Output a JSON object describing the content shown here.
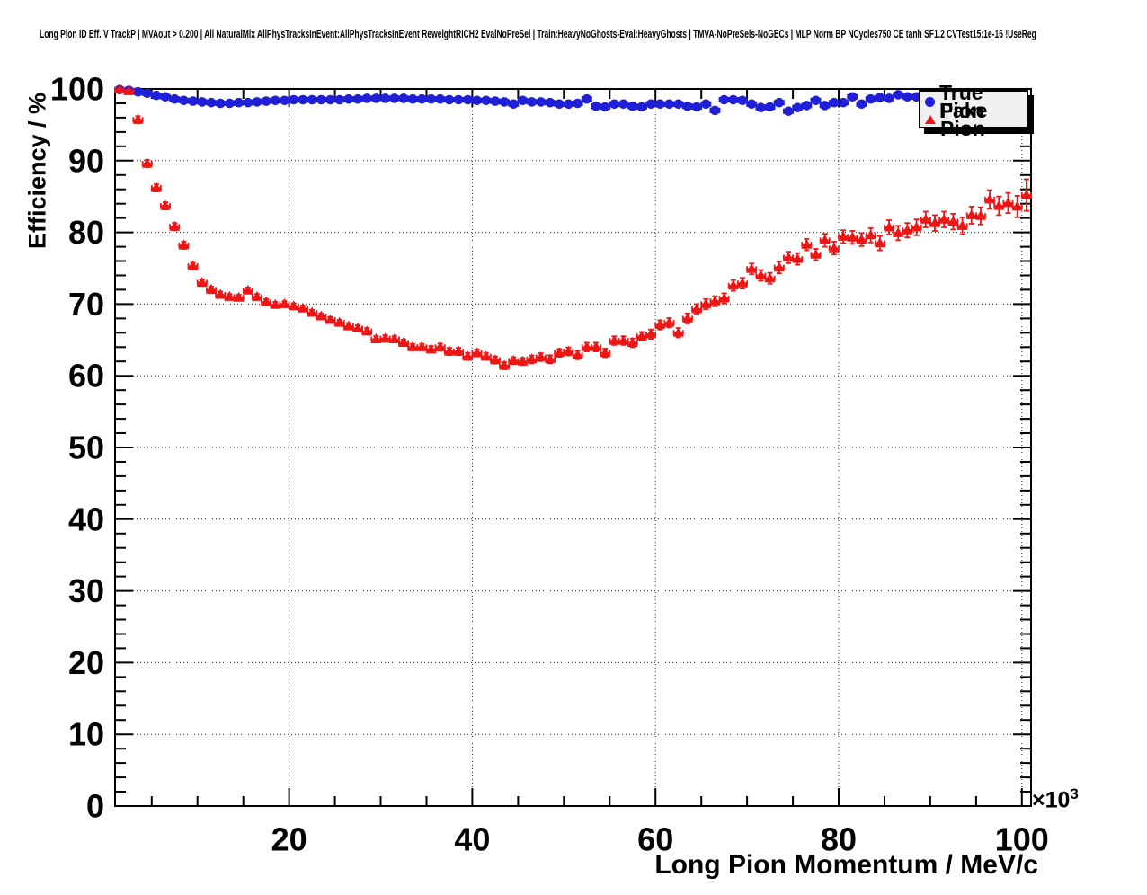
{
  "title": "Long Pion ID Eff. V TrackP | MVAout > 0.200 | All NaturalMix AllPhysTracksInEvent:AllPhysTracksInEvent ReweightRICH2 EvalNoPreSel | Train:HeavyNoGhosts-Eval:HeavyGhosts | TMVA-NoPreSels-NoGECs | MLP Norm BP NCycles750 CE tanh SF1.2 CVTest15:1e-16 !UseReg",
  "legend": {
    "items": [
      {
        "label": "True Pion",
        "marker": "circle",
        "color": "#1f1fd8"
      },
      {
        "label": "Fake Pion",
        "marker": "triangle-up",
        "color": "#ee1515"
      }
    ]
  },
  "chart_data": {
    "type": "scatter",
    "title": "Long Pion ID Eff. V TrackP | MVAout > 0.200 | All NaturalMix AllPhysTracksInEvent:AllPhysTracksInEvent ReweightRICH2 EvalNoPreSel | Train:HeavyNoGhosts-Eval:HeavyGhosts | TMVA-NoPreSels-NoGECs | MLP Norm BP NCycles750 CE tanh SF1.2 CVTest15:1e-16 !UseReg",
    "xlabel": "Long Pion Momentum / MeV/c",
    "ylabel": "Efficiency / %",
    "x_exponent": {
      "mult": "×10",
      "exp": "3"
    },
    "x_unit_scale": "values in units of 1000 MeV/c",
    "xlim": [
      1,
      101
    ],
    "ylim": [
      0,
      100
    ],
    "grid": "dotted",
    "legend_position": "top-right",
    "x_major_ticks": [
      20,
      40,
      60,
      80,
      100
    ],
    "x_tick_labels": [
      "20",
      "40",
      "60",
      "80",
      "100"
    ],
    "x_minor_step": 5,
    "y_major_ticks": [
      0,
      10,
      20,
      30,
      40,
      50,
      60,
      70,
      80,
      90,
      100
    ],
    "y_tick_labels": [
      "0",
      "10",
      "20",
      "30",
      "40",
      "50",
      "60",
      "70",
      "80",
      "90",
      "100"
    ],
    "y_minor_step": 2,
    "series": [
      {
        "name": "True Pion",
        "marker": "circle",
        "color": "#1f1fd8",
        "x_start": 1.5,
        "x_step": 1,
        "xerr": 0.5,
        "y": [
          99.9,
          99.8,
          99.6,
          99.4,
          99.1,
          98.9,
          98.6,
          98.4,
          98.3,
          98.2,
          98.1,
          98.0,
          98.0,
          98.1,
          98.1,
          98.2,
          98.3,
          98.4,
          98.4,
          98.5,
          98.5,
          98.5,
          98.5,
          98.5,
          98.5,
          98.6,
          98.6,
          98.7,
          98.7,
          98.7,
          98.7,
          98.7,
          98.6,
          98.6,
          98.6,
          98.6,
          98.5,
          98.5,
          98.5,
          98.4,
          98.4,
          98.3,
          98.2,
          97.9,
          98.4,
          98.2,
          98.2,
          98.1,
          97.9,
          97.9,
          98.0,
          98.6,
          97.6,
          97.5,
          97.9,
          97.9,
          97.6,
          97.5,
          97.9,
          97.9,
          97.9,
          97.9,
          97.6,
          97.5,
          97.9,
          97.0,
          98.5,
          98.5,
          98.4,
          97.9,
          97.4,
          97.5,
          98.1,
          96.9,
          97.4,
          97.7,
          98.4,
          97.7,
          98.1,
          98.1,
          98.9,
          97.9,
          98.6,
          98.8,
          98.7,
          99.2,
          98.9,
          98.9
        ],
        "yerr": [
          0.1,
          0.1,
          0.1,
          0.1,
          0.1,
          0.1,
          0.1,
          0.1,
          0.1,
          0.1,
          0.1,
          0.1,
          0.1,
          0.1,
          0.1,
          0.1,
          0.1,
          0.1,
          0.1,
          0.1,
          0.1,
          0.1,
          0.1,
          0.1,
          0.1,
          0.1,
          0.1,
          0.1,
          0.1,
          0.1,
          0.1,
          0.1,
          0.1,
          0.1,
          0.1,
          0.1,
          0.1,
          0.1,
          0.1,
          0.1,
          0.1,
          0.1,
          0.1,
          0.1,
          0.1,
          0.1,
          0.1,
          0.1,
          0.1,
          0.1,
          0.2,
          0.2,
          0.2,
          0.2,
          0.2,
          0.2,
          0.2,
          0.2,
          0.2,
          0.2,
          0.2,
          0.2,
          0.2,
          0.2,
          0.2,
          0.2,
          0.2,
          0.2,
          0.2,
          0.2,
          0.3,
          0.3,
          0.3,
          0.3,
          0.3,
          0.3,
          0.3,
          0.3,
          0.3,
          0.3,
          0.3,
          0.3,
          0.3,
          0.3,
          0.3,
          0.3,
          0.3,
          0.3
        ]
      },
      {
        "name": "Fake Pion",
        "marker": "triangle-up",
        "color": "#ee1515",
        "x_start": 1.5,
        "x_step": 1,
        "xerr": 0.5,
        "y": [
          99.9,
          99.7,
          95.7,
          89.6,
          86.2,
          83.7,
          80.8,
          78.2,
          75.3,
          73.0,
          72.0,
          71.3,
          71.0,
          70.9,
          71.9,
          71.0,
          70.3,
          69.9,
          70.0,
          69.7,
          69.4,
          68.8,
          68.3,
          67.8,
          67.4,
          66.9,
          66.6,
          66.2,
          65.1,
          65.2,
          65.1,
          64.6,
          64.0,
          64.0,
          63.7,
          64.0,
          63.4,
          63.4,
          62.7,
          63.2,
          62.7,
          62.2,
          61.4,
          62.1,
          62.0,
          62.3,
          62.6,
          62.3,
          63.2,
          63.4,
          62.9,
          64.0,
          64.0,
          63.2,
          64.9,
          64.9,
          64.6,
          65.5,
          65.8,
          67.1,
          67.4,
          66.0,
          68.0,
          69.3,
          70.0,
          70.4,
          70.8,
          72.6,
          72.9,
          74.9,
          74.0,
          73.6,
          75.1,
          76.5,
          76.3,
          78.3,
          76.9,
          78.9,
          77.8,
          79.4,
          79.3,
          79.0,
          79.6,
          78.5,
          80.7,
          79.9,
          80.3,
          80.7,
          81.8,
          81.3,
          81.8,
          81.5,
          80.9,
          82.4,
          82.3,
          84.6,
          83.7,
          84.1,
          83.6,
          85.2
        ],
        "yerr": [
          0.2,
          0.2,
          0.5,
          0.5,
          0.5,
          0.5,
          0.5,
          0.5,
          0.45,
          0.45,
          0.45,
          0.45,
          0.4,
          0.4,
          0.4,
          0.4,
          0.4,
          0.4,
          0.4,
          0.4,
          0.4,
          0.4,
          0.4,
          0.4,
          0.4,
          0.45,
          0.45,
          0.45,
          0.45,
          0.45,
          0.45,
          0.45,
          0.45,
          0.45,
          0.45,
          0.5,
          0.5,
          0.5,
          0.5,
          0.5,
          0.5,
          0.5,
          0.5,
          0.5,
          0.5,
          0.55,
          0.55,
          0.55,
          0.55,
          0.55,
          0.6,
          0.6,
          0.6,
          0.6,
          0.6,
          0.6,
          0.6,
          0.6,
          0.65,
          0.65,
          0.65,
          0.65,
          0.7,
          0.7,
          0.7,
          0.7,
          0.7,
          0.75,
          0.75,
          0.75,
          0.75,
          0.75,
          0.8,
          0.8,
          0.8,
          0.8,
          0.8,
          0.9,
          0.9,
          0.9,
          0.9,
          0.9,
          1.0,
          1.0,
          1.0,
          1.0,
          1.0,
          1.1,
          1.1,
          1.1,
          1.1,
          1.1,
          1.2,
          1.2,
          1.2,
          1.3,
          1.3,
          1.4,
          1.5,
          2.2
        ]
      }
    ]
  }
}
